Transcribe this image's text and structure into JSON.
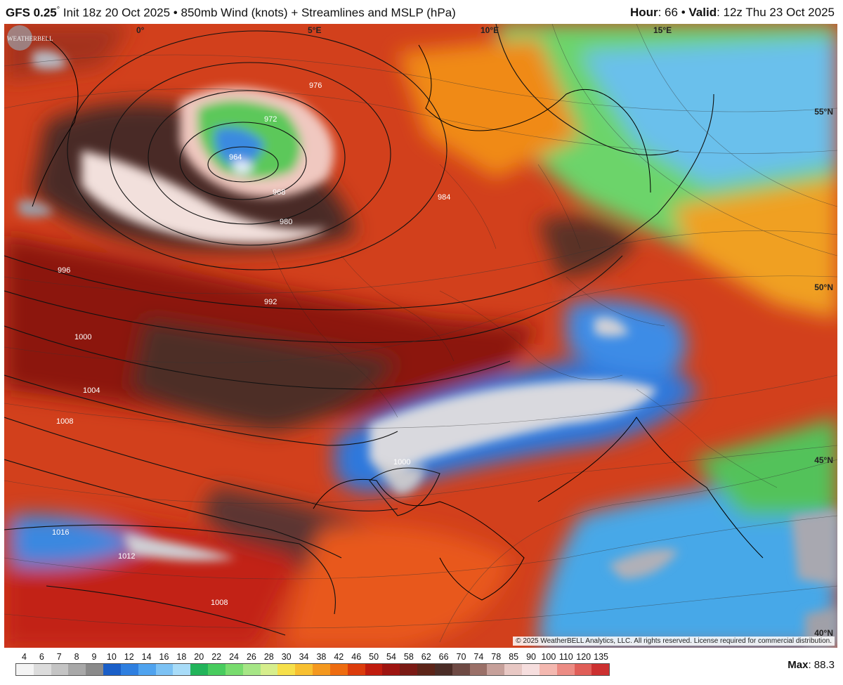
{
  "header": {
    "model": "GFS 0.25",
    "degree_mark": "°",
    "init_text": "Init 18z 20 Oct 2025",
    "separator": "•",
    "product": "850mb Wind (knots) + Streamlines and MSLP (hPa)",
    "hour_label": "Hour",
    "hour_value": ": 66",
    "valid_label": "Valid",
    "valid_value": ": 12z Thu 23 Oct 2025"
  },
  "map": {
    "lon_labels": [
      "0°",
      "5°E",
      "10°E",
      "15°E"
    ],
    "lat_labels": [
      "55°N",
      "50°N",
      "45°N",
      "40°N"
    ],
    "isobar_labels": [
      "976",
      "972",
      "964",
      "968",
      "980",
      "984",
      "996",
      "992",
      "1000",
      "1004",
      "1008",
      "1000",
      "1016",
      "1012",
      "1008"
    ],
    "copyright": "© 2025 WeatherBELL Analytics, LLC. All rights reserved. License required for commercial distribution.",
    "logo_text": "WEATHERBELL"
  },
  "legend": {
    "ticks": [
      "4",
      "6",
      "7",
      "8",
      "9",
      "10",
      "12",
      "14",
      "16",
      "18",
      "20",
      "22",
      "24",
      "26",
      "28",
      "30",
      "34",
      "38",
      "42",
      "46",
      "50",
      "54",
      "58",
      "62",
      "66",
      "70",
      "74",
      "78",
      "85",
      "90",
      "100",
      "110",
      "120",
      "135"
    ],
    "colors": [
      "#f4f4f4",
      "#dcdcdc",
      "#c4c4c4",
      "#a8a8a8",
      "#8a8a8a",
      "#1a5fc8",
      "#2e7fe0",
      "#4fa3ef",
      "#7cc2f4",
      "#a8dcf8",
      "#22b45a",
      "#48cc5e",
      "#78dc6e",
      "#a6e686",
      "#d6ee8c",
      "#f6e04a",
      "#f8c030",
      "#f4981e",
      "#ee6c10",
      "#dc3c0c",
      "#c01c0e",
      "#9e1410",
      "#7a1a14",
      "#5c2418",
      "#4a2c26",
      "#6e4a44",
      "#9a7068",
      "#c6a09a",
      "#e8c8c4",
      "#f6dede",
      "#f4b8b0",
      "#ec8c84",
      "#e05e58",
      "#cc3030"
    ],
    "max_label": "Max",
    "max_value": ": 88.3"
  }
}
